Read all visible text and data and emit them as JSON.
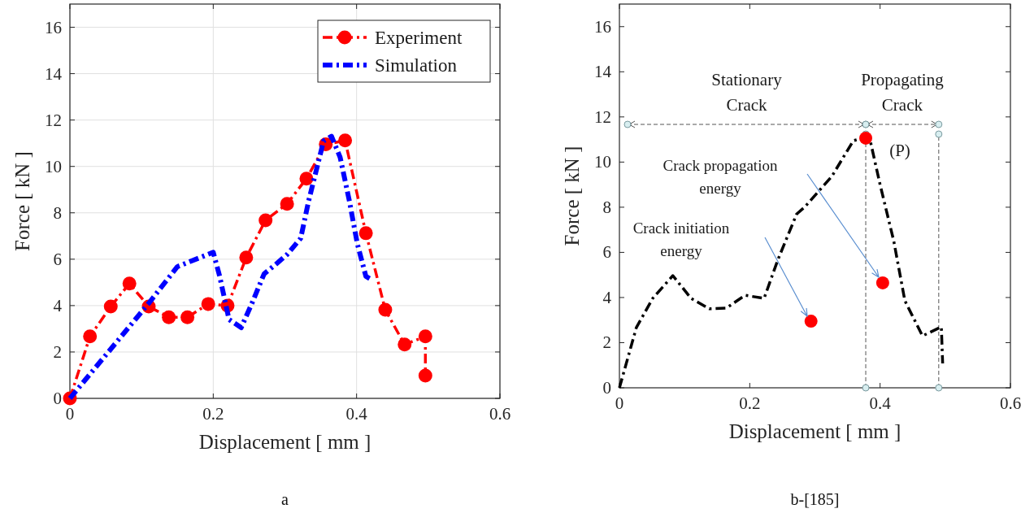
{
  "chart_data": [
    {
      "type": "line",
      "xlabel": "Displacement [ mm ]",
      "ylabel": "Force [ kN ]",
      "xlim": [
        0,
        0.6
      ],
      "ylim": [
        0,
        17
      ],
      "xticks": [
        0,
        0.2,
        0.4,
        0.6
      ],
      "yticks": [
        0,
        2,
        4,
        6,
        8,
        10,
        12,
        14,
        16
      ],
      "grid": true,
      "legend": "top right",
      "annotations": [
        "a"
      ],
      "series": [
        {
          "name": "Experiment",
          "color": "#ff0000",
          "marker": "circle",
          "line_style": "dashed",
          "x": [
            0,
            0.028,
            0.057,
            0.083,
            0.11,
            0.138,
            0.164,
            0.193,
            0.22,
            0.246,
            0.273,
            0.303,
            0.33,
            0.357,
            0.384,
            0.413,
            0.44,
            0.467,
            0.496,
            0.496
          ],
          "values": [
            0,
            2.67,
            3.96,
            4.95,
            3.96,
            3.5,
            3.5,
            4.07,
            4.0,
            6.07,
            7.68,
            8.39,
            9.47,
            10.95,
            11.12,
            7.12,
            3.82,
            2.32,
            2.67,
            0.98
          ]
        },
        {
          "name": "Simulation",
          "color": "#0000ff",
          "marker": "none",
          "line_style": "dashed",
          "x": [
            0,
            0.11,
            0.15,
            0.2,
            0.209,
            0.222,
            0.239,
            0.254,
            0.271,
            0.285,
            0.303,
            0.322,
            0.333,
            0.354,
            0.365,
            0.377,
            0.39,
            0.401,
            0.413,
            0.422
          ],
          "values": [
            0,
            4.1,
            5.68,
            6.3,
            5.26,
            3.4,
            3.05,
            4.1,
            5.37,
            5.72,
            6.2,
            6.9,
            8.5,
            11.1,
            11.3,
            10.4,
            8.5,
            6.67,
            5.26,
            5.1
          ]
        }
      ]
    },
    {
      "type": "line",
      "xlabel": "Displacement [ mm ]",
      "ylabel": "Force [ kN ]",
      "xlim": [
        0,
        0.6
      ],
      "ylim": [
        0,
        17
      ],
      "xticks": [
        0,
        0.2,
        0.4,
        0.6
      ],
      "yticks": [
        0,
        2,
        4,
        6,
        8,
        10,
        12,
        14,
        16
      ],
      "grid": false,
      "legend": false,
      "annotations": [
        {
          "text": "(P)",
          "x": 0.378,
          "y": 11.06
        },
        "Crack propagation energy",
        "Crack initiation energy",
        "Stationary Crack",
        "Propagating Crack",
        "b-[185]"
      ],
      "ref_lines": [
        {
          "axis": "x",
          "value": 0.378,
          "label": null
        },
        {
          "axis": "x",
          "value": 0.49,
          "label": null
        }
      ],
      "series": [
        {
          "color": "#000000",
          "marker": "none",
          "line_style": "dashed",
          "x": [
            0,
            0.026,
            0.051,
            0.082,
            0.11,
            0.138,
            0.164,
            0.193,
            0.222,
            0.243,
            0.272,
            0.284,
            0.326,
            0.359,
            0.374,
            0.384,
            0.4,
            0.421,
            0.438,
            0.465,
            0.494,
            0.496
          ],
          "values": [
            0,
            2.67,
            3.96,
            4.97,
            3.96,
            3.5,
            3.53,
            4.1,
            3.96,
            5.66,
            7.7,
            8.0,
            9.37,
            10.95,
            11.06,
            11.06,
            9.0,
            6.5,
            3.86,
            2.3,
            2.7,
            1.08
          ]
        },
        {
          "type": "scatter",
          "color": "#ff0000",
          "marker": "circle",
          "x": [
            0.294,
            0.404
          ],
          "values": [
            2.95,
            4.65
          ]
        },
        {
          "type": "scatter",
          "color": "#ff0000",
          "marker": "circle",
          "x": [
            0.378
          ],
          "values": [
            11.06
          ]
        }
      ]
    }
  ]
}
